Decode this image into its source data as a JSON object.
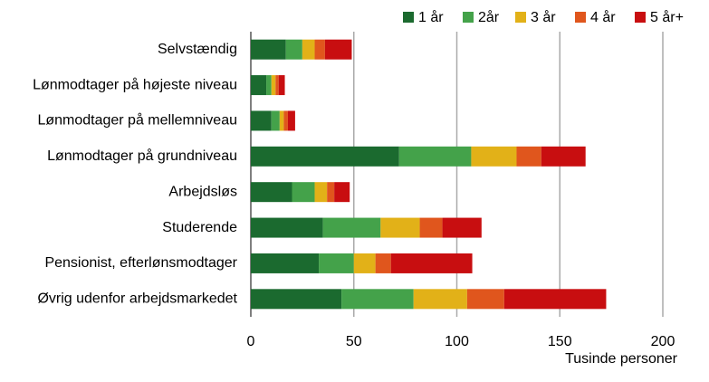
{
  "chart_data": {
    "type": "stacked_barh",
    "categories": [
      "Selvstændig",
      "Lønmodtager på højeste niveau",
      "Lønmodtager på mellemniveau",
      "Lønmodtager på grundniveau",
      "Arbejdsløs",
      "Studerende",
      "Pensionist, efterlønsmodtager",
      "Øvrig udenfor arbejdsmarkedet"
    ],
    "series": [
      {
        "name": "1 år",
        "color": "#1b6a2f",
        "values": [
          17,
          7.5,
          10,
          72,
          20,
          35,
          33,
          44
        ]
      },
      {
        "name": "2år",
        "color": "#44a24a",
        "values": [
          8,
          2.5,
          4,
          35,
          11,
          28,
          17,
          35
        ]
      },
      {
        "name": "3 år",
        "color": "#e2b118",
        "values": [
          6,
          2,
          2,
          22,
          6,
          19,
          10.5,
          26
        ]
      },
      {
        "name": "4 år",
        "color": "#e0561d",
        "values": [
          5,
          1.5,
          2,
          12,
          3.5,
          11,
          7.5,
          18
        ]
      },
      {
        "name": "5 år+",
        "color": "#c80e10",
        "values": [
          13,
          3,
          3.5,
          21.5,
          7.5,
          19,
          39.5,
          49.5
        ]
      }
    ],
    "xlabel": "Tusinde personer",
    "xlim": [
      0,
      200
    ],
    "xticks": [
      0,
      50,
      100,
      150,
      200
    ],
    "grid": true,
    "legend": "top"
  }
}
